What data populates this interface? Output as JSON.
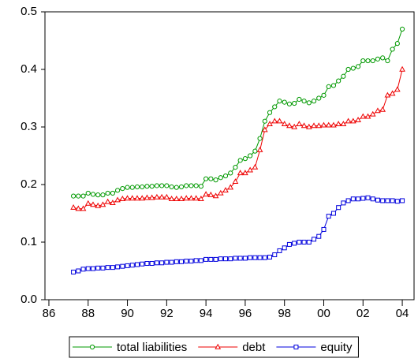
{
  "chart_data": {
    "type": "line",
    "x": [
      1987.25,
      1987.5,
      1987.75,
      1988,
      1988.25,
      1988.5,
      1988.75,
      1989,
      1989.25,
      1989.5,
      1989.75,
      1990,
      1990.25,
      1990.5,
      1990.75,
      1991,
      1991.25,
      1991.5,
      1991.75,
      1992,
      1992.25,
      1992.5,
      1992.75,
      1993,
      1993.25,
      1993.5,
      1993.75,
      1994,
      1994.25,
      1994.5,
      1994.75,
      1995,
      1995.25,
      1995.5,
      1995.75,
      1996,
      1996.25,
      1996.5,
      1996.75,
      1997,
      1997.25,
      1997.5,
      1997.75,
      1998,
      1998.25,
      1998.5,
      1998.75,
      1999,
      1999.25,
      1999.5,
      1999.75,
      2000,
      2000.25,
      2000.5,
      2000.75,
      2001,
      2001.25,
      2001.5,
      2001.75,
      2002,
      2002.25,
      2002.5,
      2002.75,
      2003,
      2003.25,
      2003.5,
      2003.75,
      2004
    ],
    "series": [
      {
        "name": "total liabilities",
        "color": "#009900",
        "marker": "circle",
        "values": [
          0.18,
          0.18,
          0.18,
          0.185,
          0.183,
          0.182,
          0.182,
          0.185,
          0.185,
          0.19,
          0.193,
          0.195,
          0.195,
          0.196,
          0.196,
          0.197,
          0.197,
          0.198,
          0.198,
          0.198,
          0.196,
          0.195,
          0.196,
          0.198,
          0.198,
          0.198,
          0.197,
          0.21,
          0.21,
          0.208,
          0.212,
          0.215,
          0.22,
          0.23,
          0.242,
          0.245,
          0.25,
          0.258,
          0.28,
          0.31,
          0.325,
          0.335,
          0.345,
          0.343,
          0.34,
          0.341,
          0.348,
          0.345,
          0.342,
          0.345,
          0.35,
          0.355,
          0.37,
          0.372,
          0.38,
          0.388,
          0.4,
          0.402,
          0.405,
          0.415,
          0.415,
          0.415,
          0.418,
          0.42,
          0.415,
          0.435,
          0.445,
          0.47
        ]
      },
      {
        "name": "debt",
        "color": "#ee0000",
        "marker": "triangle",
        "values": [
          0.16,
          0.158,
          0.158,
          0.167,
          0.165,
          0.163,
          0.165,
          0.17,
          0.168,
          0.173,
          0.175,
          0.176,
          0.176,
          0.176,
          0.176,
          0.177,
          0.177,
          0.178,
          0.178,
          0.178,
          0.175,
          0.175,
          0.175,
          0.176,
          0.176,
          0.176,
          0.175,
          0.183,
          0.182,
          0.18,
          0.185,
          0.19,
          0.195,
          0.205,
          0.22,
          0.22,
          0.225,
          0.23,
          0.26,
          0.295,
          0.305,
          0.31,
          0.31,
          0.305,
          0.302,
          0.3,
          0.305,
          0.302,
          0.3,
          0.302,
          0.302,
          0.303,
          0.303,
          0.303,
          0.305,
          0.305,
          0.31,
          0.31,
          0.312,
          0.318,
          0.318,
          0.322,
          0.328,
          0.33,
          0.355,
          0.358,
          0.365,
          0.4
        ]
      },
      {
        "name": "equity",
        "color": "#0000dd",
        "marker": "square",
        "values": [
          0.048,
          0.05,
          0.053,
          0.054,
          0.054,
          0.055,
          0.055,
          0.056,
          0.056,
          0.057,
          0.058,
          0.059,
          0.06,
          0.061,
          0.062,
          0.063,
          0.063,
          0.064,
          0.064,
          0.065,
          0.065,
          0.066,
          0.066,
          0.067,
          0.067,
          0.068,
          0.068,
          0.07,
          0.07,
          0.07,
          0.071,
          0.071,
          0.071,
          0.072,
          0.072,
          0.072,
          0.073,
          0.073,
          0.073,
          0.073,
          0.074,
          0.078,
          0.085,
          0.09,
          0.096,
          0.098,
          0.1,
          0.1,
          0.1,
          0.105,
          0.11,
          0.122,
          0.145,
          0.15,
          0.16,
          0.168,
          0.172,
          0.175,
          0.175,
          0.176,
          0.177,
          0.175,
          0.173,
          0.172,
          0.172,
          0.172,
          0.171,
          0.172
        ]
      }
    ],
    "xlim": [
      1985.8,
      2004.6
    ],
    "xticks": [
      {
        "value": 1986,
        "label": "86"
      },
      {
        "value": 1988,
        "label": "88"
      },
      {
        "value": 1990,
        "label": "90"
      },
      {
        "value": 1992,
        "label": "92"
      },
      {
        "value": 1994,
        "label": "94"
      },
      {
        "value": 1996,
        "label": "96"
      },
      {
        "value": 1998,
        "label": "98"
      },
      {
        "value": 2000,
        "label": "00"
      },
      {
        "value": 2002,
        "label": "02"
      },
      {
        "value": 2004,
        "label": "04"
      }
    ],
    "ylim": [
      0,
      0.5
    ],
    "yticks": [
      {
        "value": 0,
        "label": "0.0"
      },
      0.1,
      0.2,
      0.3,
      0.4,
      0.5
    ],
    "legend": "bottom"
  }
}
